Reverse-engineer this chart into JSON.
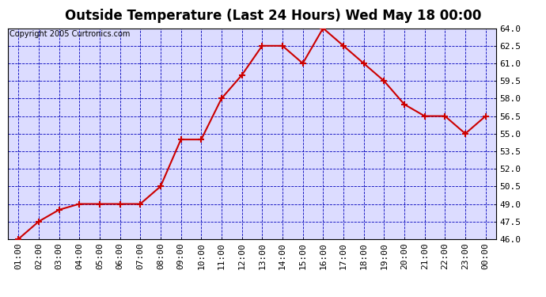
{
  "title": "Outside Temperature (Last 24 Hours) Wed May 18 00:00",
  "copyright": "Copyright 2005 Curtronics.com",
  "x_labels": [
    "01:00",
    "02:00",
    "03:00",
    "04:00",
    "05:00",
    "06:00",
    "07:00",
    "08:00",
    "09:00",
    "10:00",
    "11:00",
    "12:00",
    "13:00",
    "14:00",
    "15:00",
    "16:00",
    "17:00",
    "18:00",
    "19:00",
    "20:00",
    "21:00",
    "22:00",
    "23:00",
    "00:00"
  ],
  "y_values": [
    46.0,
    47.5,
    48.5,
    49.0,
    49.0,
    49.0,
    49.0,
    50.5,
    54.5,
    54.5,
    58.0,
    60.0,
    62.5,
    62.5,
    61.0,
    64.0,
    62.5,
    61.0,
    59.5,
    57.5,
    56.5,
    56.5,
    55.0,
    56.5
  ],
  "line_color": "#cc0000",
  "marker_color": "#cc0000",
  "fig_bg_color": "#ffffff",
  "plot_bg_color": "#dcdcff",
  "grid_color": "#0000bb",
  "title_color": "#000000",
  "axis_label_color": "#000000",
  "border_color": "#000000",
  "ylim": [
    46.0,
    64.0
  ],
  "yticks": [
    46.0,
    47.5,
    49.0,
    50.5,
    52.0,
    53.5,
    55.0,
    56.5,
    58.0,
    59.5,
    61.0,
    62.5,
    64.0
  ],
  "title_fontsize": 12,
  "tick_fontsize": 8,
  "copyright_fontsize": 7
}
